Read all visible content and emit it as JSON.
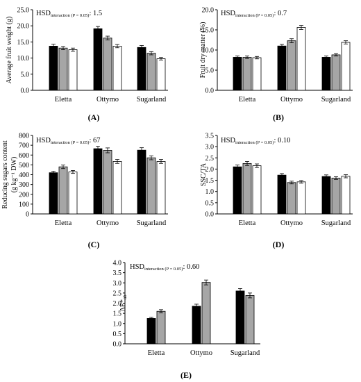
{
  "figure": {
    "panels": [
      {
        "panel_label": "(A)",
        "chart_data": {
          "type": "bar",
          "categories": [
            "Eletta",
            "Ottymo",
            "Sugarland"
          ],
          "ylabel": "Average fruit weight (g)",
          "ylim": [
            0,
            25
          ],
          "yticks": [
            "0.0",
            "5.0",
            "10.0",
            "15.0",
            "20.0",
            "25.0"
          ],
          "hsd": {
            "main": "HSD",
            "sub": "interaction (P = 0.05)",
            "value": ": 1.5"
          },
          "series": [
            {
              "fill": "#000000",
              "values": [
                13.7,
                19.1,
                13.3
              ],
              "errors": [
                0.6,
                0.7,
                0.6
              ]
            },
            {
              "fill": "#a6a6a6",
              "values": [
                13.1,
                16.2,
                11.5
              ],
              "errors": [
                0.5,
                0.6,
                0.5
              ]
            },
            {
              "fill": "#ffffff",
              "values": [
                12.6,
                13.7,
                9.8
              ],
              "errors": [
                0.5,
                0.5,
                0.4
              ]
            }
          ]
        }
      },
      {
        "panel_label": "(B)",
        "chart_data": {
          "type": "bar",
          "categories": [
            "Eletta",
            "Ottymo",
            "Sugarland"
          ],
          "ylabel": "Fruit dry matter (%)",
          "ylim": [
            0,
            20
          ],
          "yticks": [
            "0.0",
            "5.0",
            "10.0",
            "15.0",
            "20.0"
          ],
          "hsd": {
            "main": "HSD",
            "sub": "interaction (P = 0.05)",
            "value": ": 0.7"
          },
          "series": [
            {
              "fill": "#000000",
              "values": [
                8.2,
                11.0,
                8.2
              ],
              "errors": [
                0.3,
                0.4,
                0.3
              ]
            },
            {
              "fill": "#a6a6a6",
              "values": [
                8.2,
                12.3,
                8.8
              ],
              "errors": [
                0.3,
                0.5,
                0.3
              ]
            },
            {
              "fill": "#ffffff",
              "values": [
                8.1,
                15.6,
                11.9
              ],
              "errors": [
                0.3,
                0.5,
                0.4
              ]
            }
          ]
        }
      },
      {
        "panel_label": "(C)",
        "chart_data": {
          "type": "bar",
          "categories": [
            "Eletta",
            "Ottymo",
            "Sugarland"
          ],
          "ylabel": "Reducing sugars content (g kg⁻¹ DW)",
          "ylabel_lines": [
            "Reducing sugars content",
            "(g kg⁻¹ DW)"
          ],
          "ylim": [
            0,
            800
          ],
          "yticks": [
            "0",
            "100",
            "200",
            "300",
            "400",
            "500",
            "600",
            "700",
            "800"
          ],
          "hsd": {
            "main": "HSD",
            "sub": "interaction (P = 0.05)",
            "value": ": 67"
          },
          "series": [
            {
              "fill": "#000000",
              "values": [
                420,
                665,
                650
              ],
              "errors": [
                15,
                25,
                25
              ]
            },
            {
              "fill": "#a6a6a6",
              "values": [
                480,
                648,
                572
              ],
              "errors": [
                18,
                25,
                20
              ]
            },
            {
              "fill": "#ffffff",
              "values": [
                428,
                535,
                535
              ],
              "errors": [
                15,
                20,
                20
              ]
            }
          ]
        }
      },
      {
        "panel_label": "(D)",
        "chart_data": {
          "type": "bar",
          "categories": [
            "Eletta",
            "Ottymo",
            "Sugarland"
          ],
          "ylabel": "SSC/TA",
          "ylim": [
            0,
            3.5
          ],
          "yticks": [
            "0.0",
            "0.5",
            "1.0",
            "1.5",
            "2.0",
            "2.5",
            "3.0",
            "3.5"
          ],
          "hsd": {
            "main": "HSD",
            "sub": "interaction (P = 0.05)",
            "value": ": 0.10"
          },
          "series": [
            {
              "fill": "#000000",
              "values": [
                2.1,
                1.73,
                1.67
              ],
              "errors": [
                0.08,
                0.07,
                0.07
              ]
            },
            {
              "fill": "#a6a6a6",
              "values": [
                2.25,
                1.4,
                1.6
              ],
              "errors": [
                0.09,
                0.06,
                0.06
              ]
            },
            {
              "fill": "#ffffff",
              "values": [
                2.15,
                1.43,
                1.68
              ],
              "errors": [
                0.08,
                0.06,
                0.07
              ]
            }
          ]
        }
      },
      {
        "panel_label": "(E)",
        "chart_data": {
          "type": "bar",
          "categories": [
            "Eletta",
            "Ottymo",
            "Sugarland"
          ],
          "ylabel": "ΔE*ab",
          "ylabel_main": "ΔE*",
          "ylabel_sub": "ab",
          "ylim": [
            0,
            4
          ],
          "yticks": [
            "0.0",
            "0.5",
            "1.0",
            "1.5",
            "2.0",
            "2.5",
            "3.0",
            "3.5",
            "4.0"
          ],
          "hsd": {
            "main": "HSD",
            "sub": "interaction (P = 0.05)",
            "value": ": 0.60"
          },
          "series": [
            {
              "fill": "#000000",
              "values": [
                1.25,
                1.85,
                2.6
              ],
              "errors": [
                0.05,
                0.1,
                0.12
              ]
            },
            {
              "fill": "#a6a6a6",
              "values": [
                1.6,
                3.02,
                2.38
              ],
              "errors": [
                0.08,
                0.12,
                0.12
              ]
            }
          ]
        }
      }
    ]
  }
}
